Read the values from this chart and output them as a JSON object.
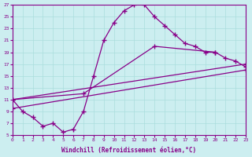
{
  "xlabel": "Windchill (Refroidissement éolien,°C)",
  "background_color": "#cceef0",
  "line_color": "#880088",
  "grid_color": "#aadddd",
  "xlim": [
    0,
    23
  ],
  "ylim": [
    5,
    27
  ],
  "xticks": [
    0,
    1,
    2,
    3,
    4,
    5,
    6,
    7,
    8,
    9,
    10,
    11,
    12,
    13,
    14,
    15,
    16,
    17,
    18,
    19,
    20,
    21,
    22,
    23
  ],
  "yticks": [
    5,
    7,
    9,
    11,
    13,
    15,
    17,
    19,
    21,
    23,
    25,
    27
  ],
  "line1_x": [
    0,
    1,
    2,
    3,
    4,
    5,
    6,
    7,
    8,
    9,
    10,
    11,
    12,
    13,
    14,
    15,
    16,
    17,
    18,
    19,
    20
  ],
  "line1_y": [
    11,
    9,
    8,
    6.5,
    7,
    5.5,
    6,
    9,
    15,
    21,
    24,
    26,
    27,
    27,
    25,
    23.5,
    22,
    20.5,
    20,
    19,
    19
  ],
  "line2_x": [
    0,
    7,
    14,
    20,
    21,
    22,
    23
  ],
  "line2_y": [
    11,
    12,
    20,
    19,
    18,
    17.5,
    16.5
  ],
  "line3_x": [
    0,
    23
  ],
  "line3_y": [
    11,
    17
  ],
  "line4_x": [
    0,
    23
  ],
  "line4_y": [
    9.5,
    16
  ]
}
